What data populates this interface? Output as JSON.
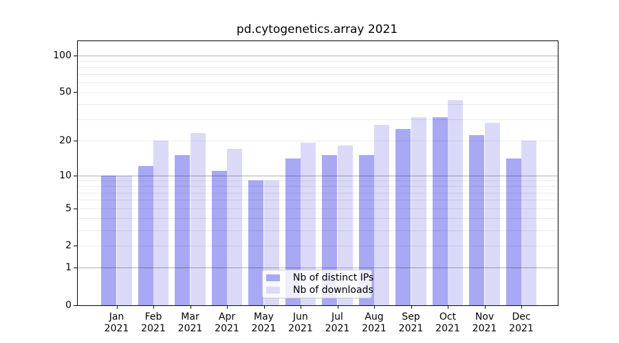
{
  "title": "pd.cytogenetics.array 2021",
  "chart_data": {
    "type": "bar",
    "title": "pd.cytogenetics.array 2021",
    "categories": [
      "Jan 2021",
      "Feb 2021",
      "Mar 2021",
      "Apr 2021",
      "May 2021",
      "Jun 2021",
      "Jul 2021",
      "Aug 2021",
      "Sep 2021",
      "Oct 2021",
      "Nov 2021",
      "Dec 2021"
    ],
    "series": [
      {
        "name": "Nb of distinct IPs",
        "color": "#a8a8f5",
        "values": [
          10,
          12,
          15,
          11,
          9,
          14,
          15,
          15,
          25,
          31,
          22,
          14
        ]
      },
      {
        "name": "Nb of downloads",
        "color": "#dadaf8",
        "values": [
          10,
          20,
          23,
          17,
          9,
          19,
          18,
          27,
          31,
          43,
          28,
          20
        ]
      }
    ],
    "xlabel": "",
    "ylabel": "",
    "yscale": "log1p",
    "ylim": [
      0,
      130
    ],
    "yticks": [
      0,
      1,
      2,
      5,
      10,
      20,
      50,
      100
    ],
    "major_gridlines": [
      1,
      10,
      100
    ],
    "minor_gridlines": [
      2,
      3,
      4,
      5,
      6,
      7,
      8,
      9,
      20,
      30,
      40,
      50,
      60,
      70,
      80,
      90
    ],
    "grid": true,
    "legend_position": "lower center",
    "bar_color_ips": "#a8a8f5",
    "bar_color_downloads": "#dadaf8"
  }
}
